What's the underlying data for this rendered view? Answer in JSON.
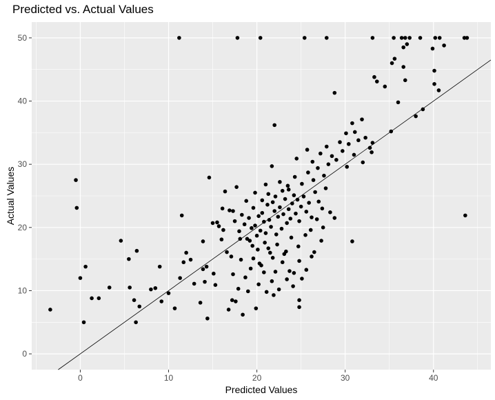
{
  "chart_data": {
    "type": "scatter",
    "title": "Predicted vs. Actual Values",
    "xlabel": "Predicted Values",
    "ylabel": "Actual Values",
    "xlim": [
      -5.5,
      46.5
    ],
    "ylim": [
      -2.5,
      52.5
    ],
    "x_ticks": [
      0,
      10,
      20,
      30,
      40
    ],
    "y_ticks": [
      0,
      10,
      20,
      30,
      40,
      50
    ],
    "grid": true,
    "colors": {
      "panel": "#ebebeb",
      "grid": "#ffffff",
      "points": "#000000",
      "line": "#000000"
    },
    "reference_line": {
      "intercept": 0,
      "slope": 1
    },
    "points": [
      [
        -3.4,
        7.0
      ],
      [
        -0.5,
        27.5
      ],
      [
        -0.4,
        23.1
      ],
      [
        0,
        12.0
      ],
      [
        0.4,
        5.0
      ],
      [
        0.6,
        13.8
      ],
      [
        1.3,
        8.8
      ],
      [
        2.1,
        8.8
      ],
      [
        3.3,
        10.5
      ],
      [
        4.6,
        17.9
      ],
      [
        5.5,
        15.0
      ],
      [
        5.6,
        10.5
      ],
      [
        6.1,
        8.5
      ],
      [
        6.3,
        5.0
      ],
      [
        6.4,
        16.3
      ],
      [
        6.7,
        7.5
      ],
      [
        8.0,
        10.2
      ],
      [
        8.5,
        10.4
      ],
      [
        9.0,
        13.8
      ],
      [
        9.2,
        8.3
      ],
      [
        10.0,
        9.6
      ],
      [
        10.7,
        7.2
      ],
      [
        11.3,
        12.0
      ],
      [
        11.5,
        21.9
      ],
      [
        11.7,
        14.5
      ],
      [
        12.0,
        16.0
      ],
      [
        12.5,
        14.9
      ],
      [
        12.9,
        11.1
      ],
      [
        13.6,
        8.1
      ],
      [
        13.9,
        17.8
      ],
      [
        14.3,
        13.8
      ],
      [
        14.4,
        5.6
      ],
      [
        14.6,
        27.9
      ],
      [
        11.2,
        50
      ],
      [
        17.8,
        50
      ],
      [
        20.4,
        50
      ],
      [
        25.4,
        50
      ],
      [
        27.9,
        50
      ],
      [
        33.1,
        50
      ],
      [
        35.5,
        50
      ],
      [
        36.4,
        50
      ],
      [
        36.8,
        50
      ],
      [
        37.3,
        50
      ],
      [
        38.5,
        50
      ],
      [
        40.2,
        50
      ],
      [
        40.7,
        50
      ],
      [
        43.5,
        50
      ],
      [
        43.8,
        50
      ],
      [
        35.6,
        46.7
      ],
      [
        36.6,
        48.5
      ],
      [
        37.0,
        49.0
      ],
      [
        39.9,
        48.3
      ],
      [
        41.2,
        48.8
      ],
      [
        33.3,
        43.8
      ],
      [
        33.6,
        43.1
      ],
      [
        34.5,
        42.3
      ],
      [
        35.3,
        46.0
      ],
      [
        36.0,
        39.8
      ],
      [
        36.6,
        45.4
      ],
      [
        36.8,
        43.3
      ],
      [
        40.1,
        44.8
      ],
      [
        40.1,
        42.7
      ],
      [
        40.6,
        41.7
      ],
      [
        28.8,
        41.3
      ],
      [
        22.0,
        36.2
      ],
      [
        35.2,
        35.2
      ],
      [
        38.0,
        37.6
      ],
      [
        38.8,
        38.7
      ],
      [
        43.6,
        21.9
      ],
      [
        30.8,
        17.8
      ],
      [
        24.8,
        7.4
      ],
      [
        24.8,
        8.5
      ],
      [
        13.9,
        13.4
      ],
      [
        14.1,
        11.4
      ],
      [
        15.1,
        12.7
      ],
      [
        15.3,
        10.9
      ],
      [
        15.7,
        20.2
      ],
      [
        16.0,
        18.1
      ],
      [
        16.6,
        16.1
      ],
      [
        17.1,
        15.4
      ],
      [
        17.3,
        12.6
      ],
      [
        17.6,
        8.3
      ],
      [
        17.9,
        10.3
      ],
      [
        18.2,
        14.9
      ],
      [
        18.4,
        6.2
      ],
      [
        18.7,
        12.1
      ],
      [
        19.0,
        9.9
      ],
      [
        19.3,
        13.5
      ],
      [
        19.9,
        7.2
      ],
      [
        20.2,
        11.0
      ],
      [
        20.5,
        14.0
      ],
      [
        20.8,
        12.9
      ],
      [
        21.3,
        16.7
      ],
      [
        21.7,
        11.5
      ],
      [
        22.1,
        13.0
      ],
      [
        22.5,
        10.2
      ],
      [
        22.9,
        14.5
      ],
      [
        23.3,
        16.2
      ],
      [
        23.7,
        13.1
      ],
      [
        24.2,
        12.8
      ],
      [
        24.8,
        14.7
      ],
      [
        25.6,
        13.3
      ],
      [
        26.2,
        15.4
      ],
      [
        16.8,
        7.0
      ],
      [
        17.2,
        8.5
      ],
      [
        21.1,
        9.8
      ],
      [
        21.9,
        9.3
      ],
      [
        15.5,
        20.8
      ],
      [
        16.2,
        19.6
      ],
      [
        16.9,
        22.7
      ],
      [
        17.5,
        21.0
      ],
      [
        18.0,
        19.4
      ],
      [
        18.3,
        22.0
      ],
      [
        18.6,
        20.5
      ],
      [
        18.9,
        18.2
      ],
      [
        19.1,
        21.5
      ],
      [
        19.4,
        19.9
      ],
      [
        19.6,
        23.1
      ],
      [
        19.8,
        20.3
      ],
      [
        20.0,
        18.7
      ],
      [
        20.2,
        21.8
      ],
      [
        20.4,
        19.5
      ],
      [
        20.6,
        22.3
      ],
      [
        20.8,
        20.9
      ],
      [
        21.0,
        19.1
      ],
      [
        21.2,
        23.6
      ],
      [
        21.4,
        21.2
      ],
      [
        21.6,
        20.1
      ],
      [
        21.8,
        24.0
      ],
      [
        22.0,
        22.6
      ],
      [
        22.2,
        18.9
      ],
      [
        22.4,
        21.7
      ],
      [
        22.6,
        23.2
      ],
      [
        22.8,
        19.8
      ],
      [
        23.0,
        22.1
      ],
      [
        23.2,
        24.5
      ],
      [
        23.4,
        20.7
      ],
      [
        23.6,
        22.9
      ],
      [
        23.8,
        21.4
      ],
      [
        24.0,
        23.8
      ],
      [
        24.2,
        25.1
      ],
      [
        24.4,
        22.2
      ],
      [
        24.6,
        24.4
      ],
      [
        24.8,
        21.0
      ],
      [
        25.0,
        23.3
      ],
      [
        25.3,
        24.9
      ],
      [
        25.6,
        22.5
      ],
      [
        25.9,
        23.9
      ],
      [
        26.2,
        21.6
      ],
      [
        26.6,
        25.6
      ],
      [
        27.0,
        24.1
      ],
      [
        27.4,
        23.0
      ],
      [
        27.8,
        26.2
      ],
      [
        19.5,
        17.1
      ],
      [
        20.1,
        16.5
      ],
      [
        20.9,
        17.6
      ],
      [
        21.5,
        16.0
      ],
      [
        22.3,
        17.3
      ],
      [
        23.1,
        15.8
      ],
      [
        23.9,
        18.4
      ],
      [
        24.7,
        17.0
      ],
      [
        25.5,
        18.8
      ],
      [
        26.1,
        19.6
      ],
      [
        26.8,
        21.3
      ],
      [
        27.5,
        20.0
      ],
      [
        28.3,
        22.4
      ],
      [
        28.8,
        21.5
      ],
      [
        22.6,
        27.2
      ],
      [
        23.5,
        26.6
      ],
      [
        24.3,
        28.0
      ],
      [
        25.1,
        26.9
      ],
      [
        25.8,
        28.7
      ],
      [
        26.4,
        27.5
      ],
      [
        26.9,
        29.4
      ],
      [
        27.6,
        28.2
      ],
      [
        28.1,
        30.0
      ],
      [
        28.5,
        31.3
      ],
      [
        29.0,
        30.7
      ],
      [
        29.4,
        33.5
      ],
      [
        29.7,
        32.1
      ],
      [
        30.1,
        34.9
      ],
      [
        30.4,
        33.2
      ],
      [
        30.8,
        36.5
      ],
      [
        31.1,
        35.1
      ],
      [
        31.5,
        33.8
      ],
      [
        31.9,
        37.1
      ],
      [
        32.3,
        34.2
      ],
      [
        32.8,
        32.6
      ],
      [
        33.1,
        33.4
      ],
      [
        30.2,
        29.6
      ],
      [
        31.0,
        31.5
      ],
      [
        32.0,
        30.3
      ],
      [
        33.0,
        31.9
      ],
      [
        21.3,
        25.3
      ],
      [
        22.1,
        24.9
      ],
      [
        22.9,
        25.8
      ],
      [
        23.6,
        26.0
      ],
      [
        24.5,
        30.9
      ],
      [
        25.7,
        32.3
      ],
      [
        26.3,
        30.4
      ],
      [
        27.2,
        31.7
      ],
      [
        27.9,
        32.8
      ],
      [
        21.0,
        26.8
      ],
      [
        21.7,
        29.7
      ],
      [
        20.6,
        24.3
      ],
      [
        19.8,
        25.5
      ],
      [
        18.8,
        24.2
      ],
      [
        17.3,
        22.6
      ],
      [
        16.1,
        23.0
      ],
      [
        17.7,
        26.4
      ],
      [
        16.4,
        25.7
      ],
      [
        15.0,
        20.7
      ],
      [
        18.1,
        18.2
      ],
      [
        19.2,
        17.9
      ],
      [
        19.6,
        15.1
      ],
      [
        20.3,
        14.3
      ],
      [
        21.8,
        15.2
      ],
      [
        23.4,
        11.8
      ],
      [
        24.1,
        10.7
      ],
      [
        25.1,
        11.9
      ],
      [
        26.5,
        16.1
      ],
      [
        27.3,
        17.9
      ]
    ]
  }
}
